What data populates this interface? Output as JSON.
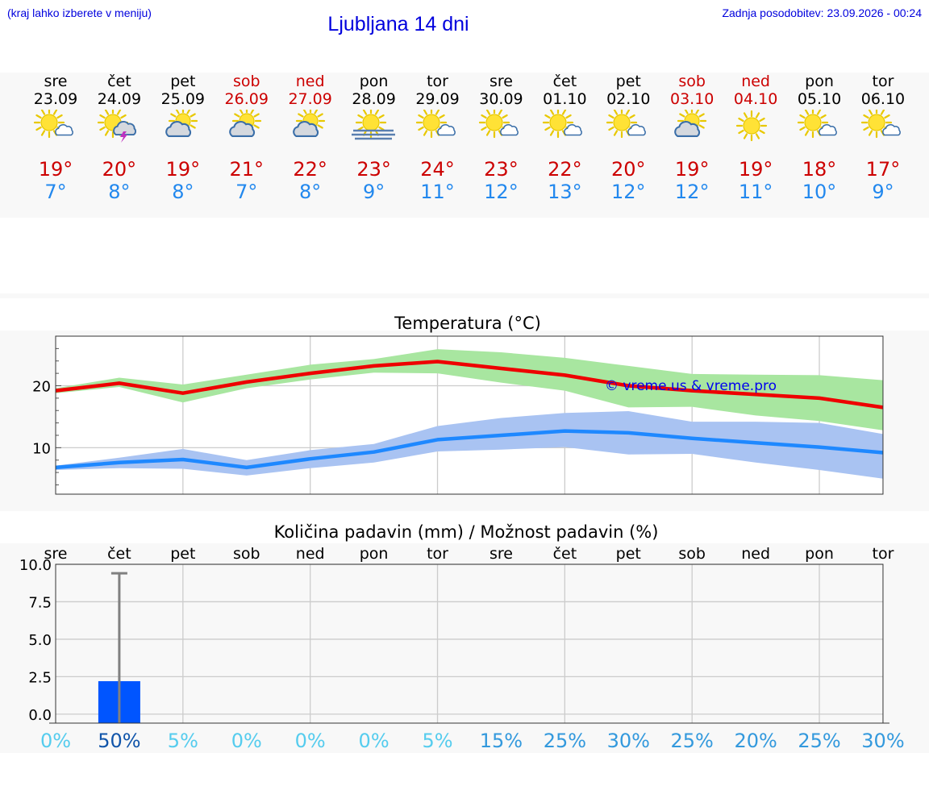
{
  "header": {
    "location_hint": "(kraj lahko izberete v meniju)",
    "title": "Ljubljana 14 dni",
    "updated": "Zadnja posodobitev: 23.09.2026 - 00:24"
  },
  "days": [
    {
      "name": "sre",
      "date": "23.09",
      "weekend": false,
      "icon": "sun-cloud-icon",
      "tmax": "19°",
      "tmin": "7°"
    },
    {
      "name": "čet",
      "date": "24.09",
      "weekend": false,
      "icon": "sun-thunder-icon",
      "tmax": "20°",
      "tmin": "8°"
    },
    {
      "name": "pet",
      "date": "25.09",
      "weekend": false,
      "icon": "cloud-sun-icon",
      "tmax": "19°",
      "tmin": "8°"
    },
    {
      "name": "sob",
      "date": "26.09",
      "weekend": true,
      "icon": "cloud-sun-icon",
      "tmax": "21°",
      "tmin": "7°"
    },
    {
      "name": "ned",
      "date": "27.09",
      "weekend": true,
      "icon": "cloud-sun-icon",
      "tmax": "22°",
      "tmin": "8°"
    },
    {
      "name": "pon",
      "date": "28.09",
      "weekend": false,
      "icon": "sun-fog-icon",
      "tmax": "23°",
      "tmin": "9°"
    },
    {
      "name": "tor",
      "date": "29.09",
      "weekend": false,
      "icon": "sun-cloud-icon",
      "tmax": "24°",
      "tmin": "11°"
    },
    {
      "name": "sre",
      "date": "30.09",
      "weekend": false,
      "icon": "sun-cloud-icon",
      "tmax": "23°",
      "tmin": "12°"
    },
    {
      "name": "čet",
      "date": "01.10",
      "weekend": false,
      "icon": "sun-cloud-icon",
      "tmax": "22°",
      "tmin": "13°"
    },
    {
      "name": "pet",
      "date": "02.10",
      "weekend": false,
      "icon": "sun-cloud-icon",
      "tmax": "20°",
      "tmin": "12°"
    },
    {
      "name": "sob",
      "date": "03.10",
      "weekend": true,
      "icon": "cloud-sun-icon",
      "tmax": "19°",
      "tmin": "12°"
    },
    {
      "name": "ned",
      "date": "04.10",
      "weekend": true,
      "icon": "sun-icon",
      "tmax": "19°",
      "tmin": "11°"
    },
    {
      "name": "pon",
      "date": "05.10",
      "weekend": false,
      "icon": "sun-cloud-icon",
      "tmax": "18°",
      "tmin": "10°"
    },
    {
      "name": "tor",
      "date": "06.10",
      "weekend": false,
      "icon": "sun-cloud-icon",
      "tmax": "17°",
      "tmin": "9°"
    }
  ],
  "colors": {
    "max_line": "#ee0000",
    "max_band": "#a8e6a0",
    "min_line": "#1e88ff",
    "min_band": "#a9c3f2",
    "bar": "#0055ff",
    "errbar": "#808080",
    "pct_low": "#55ccee",
    "pct_mid": "#3399dd",
    "pct_high": "#1155aa"
  },
  "chart_data": [
    {
      "type": "line",
      "title": "Temperatura (°C)",
      "watermark": "© vreme.us & vreme.pro",
      "yticks": [
        10,
        20
      ],
      "ylim": [
        2.5,
        28
      ],
      "x": [
        0,
        1,
        2,
        3,
        4,
        5,
        6,
        7,
        8,
        9,
        10,
        11,
        12,
        13
      ],
      "series": [
        {
          "name": "max",
          "values": [
            19.2,
            20.4,
            18.8,
            20.6,
            22.0,
            23.2,
            23.9,
            22.8,
            21.7,
            20.0,
            19.2,
            18.6,
            18.0,
            16.5
          ],
          "band_low": [
            18.8,
            19.8,
            17.3,
            19.6,
            21.0,
            22.1,
            22.0,
            20.5,
            19.2,
            16.5,
            16.6,
            15.2,
            14.3,
            12.8
          ],
          "band_high": [
            19.6,
            21.3,
            20.2,
            21.8,
            23.4,
            24.3,
            25.9,
            25.4,
            24.5,
            23.2,
            21.9,
            21.8,
            21.7,
            20.9
          ]
        },
        {
          "name": "min",
          "values": [
            6.8,
            7.6,
            8.1,
            6.8,
            8.2,
            9.3,
            11.3,
            12.0,
            12.7,
            12.4,
            11.5,
            10.8,
            10.1,
            9.2
          ],
          "band_low": [
            6.4,
            6.7,
            6.6,
            5.5,
            6.7,
            7.6,
            9.4,
            9.7,
            10.1,
            8.9,
            9.0,
            7.6,
            6.4,
            5.0
          ],
          "band_high": [
            7.1,
            8.4,
            9.8,
            8.0,
            9.6,
            10.6,
            13.5,
            14.8,
            15.6,
            15.9,
            14.2,
            14.2,
            14.0,
            12.2
          ]
        }
      ]
    },
    {
      "type": "bar",
      "title": "Količina padavin (mm) / Možnost padavin (%)",
      "categories": [
        "sre",
        "čet",
        "pet",
        "sob",
        "ned",
        "pon",
        "tor",
        "sre",
        "čet",
        "pet",
        "sob",
        "ned",
        "pon",
        "tor"
      ],
      "values": [
        0,
        2.2,
        0,
        0,
        0,
        0,
        0,
        0,
        0,
        0,
        0,
        0,
        0,
        0
      ],
      "error_high": [
        0,
        9.4,
        0,
        0,
        0,
        0,
        0,
        0,
        0,
        0,
        0,
        0,
        0,
        0
      ],
      "yticks": [
        "0.0",
        "2.5",
        "5.0",
        "7.5",
        "10.0"
      ],
      "ylim": [
        -0.6,
        10.0
      ],
      "probability": [
        "0%",
        "50%",
        "5%",
        "0%",
        "0%",
        "0%",
        "5%",
        "15%",
        "25%",
        "30%",
        "25%",
        "20%",
        "25%",
        "30%"
      ],
      "probability_values": [
        0,
        50,
        5,
        0,
        0,
        0,
        5,
        15,
        25,
        30,
        25,
        20,
        25,
        30
      ]
    }
  ]
}
